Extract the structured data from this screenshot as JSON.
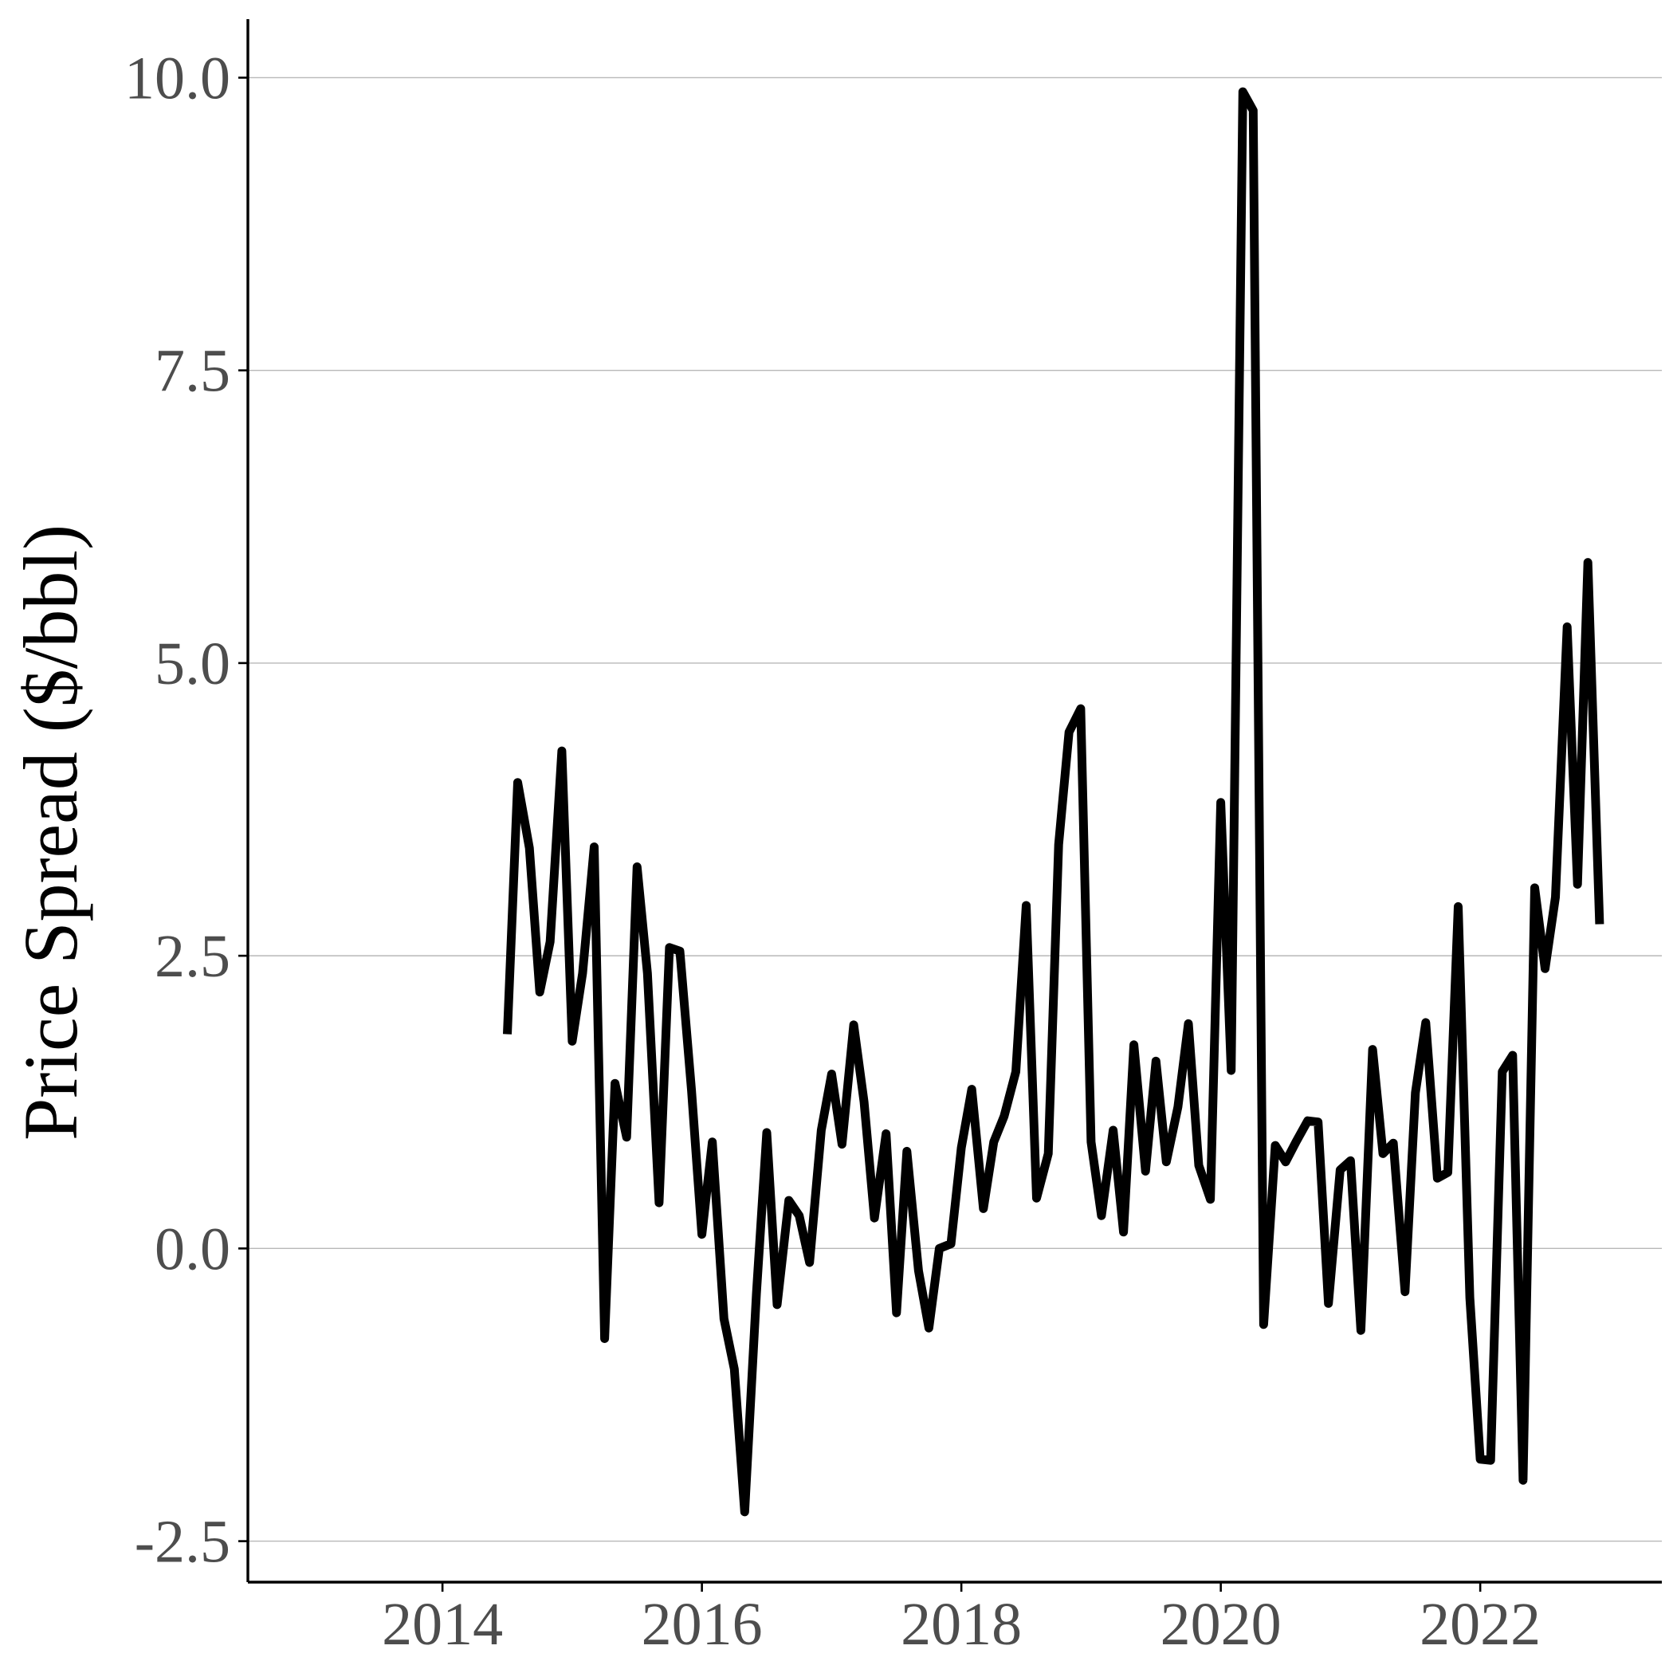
{
  "chart_data": {
    "type": "line",
    "title": "",
    "xlabel": "",
    "ylabel": "Price Spread ($/bbl)",
    "xlim": [
      2012.5,
      2023.4
    ],
    "ylim": [
      -2.85,
      10.5
    ],
    "x_ticks": [
      2014,
      2016,
      2018,
      2020,
      2022
    ],
    "x_tick_labels": [
      "2014",
      "2016",
      "2018",
      "2020",
      "2022"
    ],
    "y_ticks": [
      -2.5,
      0,
      2.5,
      5,
      7.5,
      10
    ],
    "y_tick_labels": [
      "-2.5",
      "0.0",
      "2.5",
      "5.0",
      "7.5",
      "10.0"
    ],
    "grid": {
      "major_y": true,
      "major_x": false
    },
    "legend": "none",
    "colors": {
      "line": "#000000",
      "grid": "#b8b8b8",
      "tick_label": "#4d4d4d"
    },
    "series": [
      {
        "x": [
          2014.5,
          2014.58,
          2014.67,
          2014.75,
          2014.83,
          2014.92,
          2015.0,
          2015.08,
          2015.17,
          2015.25,
          2015.33,
          2015.42,
          2015.5,
          2015.58,
          2015.67,
          2015.75,
          2015.83,
          2015.92,
          2016.0,
          2016.08,
          2016.17,
          2016.25,
          2016.33,
          2016.42,
          2016.5,
          2016.58,
          2016.67,
          2016.75,
          2016.83,
          2016.92,
          2017.0,
          2017.08,
          2017.17,
          2017.25,
          2017.33,
          2017.42,
          2017.5,
          2017.58,
          2017.67,
          2017.75,
          2017.83,
          2017.92,
          2018.0,
          2018.08,
          2018.17,
          2018.25,
          2018.33,
          2018.42,
          2018.5,
          2018.58,
          2018.67,
          2018.75,
          2018.83,
          2018.92,
          2019.0,
          2019.08,
          2019.17,
          2019.25,
          2019.33,
          2019.42,
          2019.5,
          2019.58,
          2019.67,
          2019.75,
          2019.83,
          2019.92,
          2020.0,
          2020.08,
          2020.17,
          2020.25,
          2020.33,
          2020.42,
          2020.5,
          2020.58,
          2020.67,
          2020.75,
          2020.83,
          2020.92,
          2021.0,
          2021.08,
          2021.17,
          2021.25,
          2021.33,
          2021.42,
          2021.5,
          2021.58,
          2021.67,
          2021.75,
          2021.83,
          2021.92,
          2022.0,
          2022.08,
          2022.17,
          2022.25,
          2022.33,
          2022.42,
          2022.5,
          2022.58,
          2022.67,
          2022.75,
          2022.83,
          2022.92
        ],
        "values": [
          1.83,
          3.98,
          3.42,
          2.19,
          2.62,
          4.25,
          1.77,
          2.35,
          3.43,
          -0.77,
          1.41,
          0.95,
          3.26,
          2.35,
          0.39,
          2.57,
          2.54,
          1.35,
          0.12,
          0.91,
          -0.6,
          -1.03,
          -2.25,
          -0.39,
          0.99,
          -0.48,
          0.41,
          0.28,
          -0.12,
          1.01,
          1.49,
          0.89,
          1.91,
          1.25,
          0.26,
          0.98,
          -0.55,
          0.83,
          -0.19,
          -0.68,
          0.0,
          0.04,
          0.86,
          1.36,
          0.34,
          0.91,
          1.13,
          1.51,
          2.93,
          0.43,
          0.81,
          3.45,
          4.41,
          4.61,
          0.91,
          0.28,
          1.01,
          0.14,
          1.74,
          0.66,
          1.6,
          0.74,
          1.21,
          1.92,
          0.71,
          0.42,
          3.81,
          1.52,
          9.88,
          9.72,
          -0.65,
          0.88,
          0.74,
          0.91,
          1.09,
          1.08,
          -0.47,
          0.67,
          0.75,
          -0.7,
          1.7,
          0.81,
          0.9,
          -0.37,
          1.33,
          1.93,
          0.6,
          0.65,
          2.92,
          -0.42,
          -1.8,
          -1.81,
          1.51,
          1.65,
          -1.98,
          3.08,
          2.39,
          3.0,
          5.31,
          3.11,
          5.86,
          2.77
        ]
      }
    ]
  }
}
